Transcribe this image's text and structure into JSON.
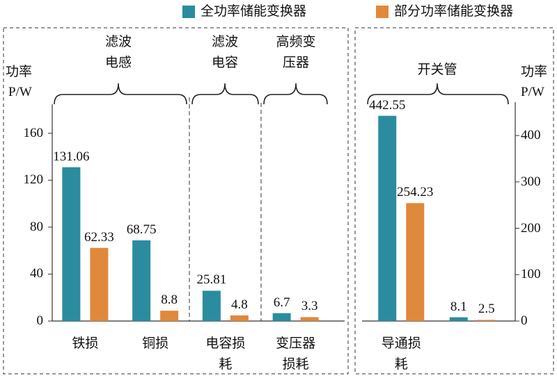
{
  "chart_data": [
    {
      "type": "bar",
      "ylabel": [
        "功率",
        "P/W"
      ],
      "group_labels": [
        "滤波电感",
        "滤波电容",
        "高频变压器"
      ],
      "categories": [
        "铁损",
        "铜损",
        "电容损耗",
        "变压器损耗"
      ],
      "series": [
        {
          "name": "全功率储能变换器",
          "color": "#2b8c9f",
          "values": [
            131.06,
            68.75,
            25.81,
            6.7
          ]
        },
        {
          "name": "部分功率储能变换器",
          "color": "#e0883b",
          "values": [
            62.33,
            8.8,
            4.8,
            3.3
          ]
        }
      ],
      "ylim": [
        0,
        180
      ],
      "yticks": [
        0,
        40,
        80,
        120,
        160
      ],
      "yaxis_side": "left"
    },
    {
      "type": "bar",
      "ylabel": [
        "功率",
        "P/W"
      ],
      "group_labels": [
        "开关管"
      ],
      "categories": [
        "导通损耗",
        null
      ],
      "series": [
        {
          "color": "#2b8c9f",
          "values": [
            442.55,
            8.1
          ]
        },
        {
          "color": "#e0883b",
          "values": [
            254.23,
            2.5
          ]
        }
      ],
      "ylim": [
        0,
        460
      ],
      "yticks": [
        0,
        100,
        200,
        300,
        400
      ],
      "yaxis_side": "right"
    }
  ]
}
